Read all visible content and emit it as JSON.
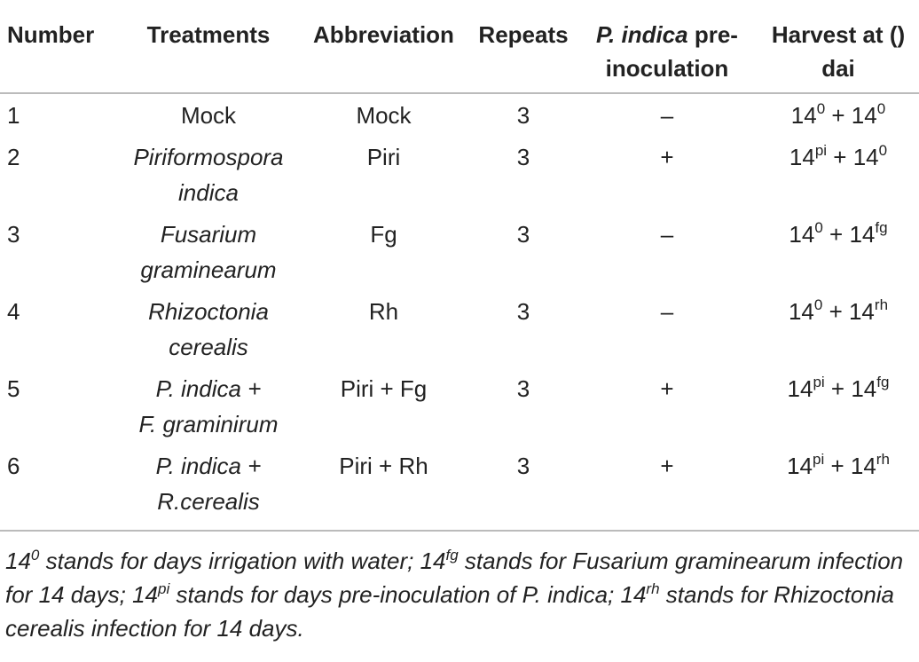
{
  "table": {
    "header": [
      "Number",
      "Treatments",
      "Abbreviation",
      "Repeats",
      {
        "italic": "P. indica",
        "text": " pre-inoculation"
      },
      "Harvest at () dai"
    ],
    "rows": [
      {
        "number": "1",
        "treatment": [
          "Mock"
        ],
        "treatment_italic": false,
        "abbreviation": "Mock",
        "repeats": 3,
        "pre_inoculation": "–",
        "harvest": [
          {
            "text": "14"
          },
          {
            "sup": "0"
          },
          {
            "text": " + 14"
          },
          {
            "sup": "0"
          }
        ]
      },
      {
        "number": "2",
        "treatment": [
          "Piriformospora",
          "indica"
        ],
        "treatment_italic": true,
        "abbreviation": "Piri",
        "repeats": 3,
        "pre_inoculation": "+",
        "harvest": [
          {
            "text": "14"
          },
          {
            "sup": "pi"
          },
          {
            "text": " + 14"
          },
          {
            "sup": "0"
          }
        ]
      },
      {
        "number": "3",
        "treatment": [
          "Fusarium",
          "graminearum"
        ],
        "treatment_italic": true,
        "abbreviation": "Fg",
        "repeats": 3,
        "pre_inoculation": "–",
        "harvest": [
          {
            "text": "14"
          },
          {
            "sup": "0"
          },
          {
            "text": " + 14"
          },
          {
            "sup": "fg"
          }
        ]
      },
      {
        "number": "4",
        "treatment": [
          "Rhizoctonia",
          "cerealis"
        ],
        "treatment_italic": true,
        "abbreviation": "Rh",
        "repeats": 3,
        "pre_inoculation": "–",
        "harvest": [
          {
            "text": "14"
          },
          {
            "sup": "0"
          },
          {
            "text": " + 14"
          },
          {
            "sup": "rh"
          }
        ]
      },
      {
        "number": "5",
        "treatment": [
          "P. indica +",
          "F. graminirum"
        ],
        "treatment_italic": true,
        "abbreviation": "Piri + Fg",
        "repeats": 3,
        "pre_inoculation": "+",
        "harvest": [
          {
            "text": "14"
          },
          {
            "sup": "pi"
          },
          {
            "text": " + 14"
          },
          {
            "sup": "fg"
          }
        ]
      },
      {
        "number": "6",
        "treatment": [
          "P. indica +",
          "R.cerealis"
        ],
        "treatment_italic": true,
        "abbreviation": "Piri + Rh",
        "repeats": 3,
        "pre_inoculation": "+",
        "harvest": [
          {
            "text": "14"
          },
          {
            "sup": "pi"
          },
          {
            "text": " + 14"
          },
          {
            "sup": "rh"
          }
        ]
      }
    ],
    "footnote": [
      {
        "text": "14"
      },
      {
        "sup": "0"
      },
      {
        "text": " stands for days irrigation with water; 14"
      },
      {
        "sup": "fg"
      },
      {
        "text": " stands for Fusarium graminearum infection for 14 days; 14"
      },
      {
        "sup": "pi"
      },
      {
        "text": " stands for days pre-inoculation of P. indica; 14"
      },
      {
        "sup": "rh"
      },
      {
        "text": " stands for Rhizoctonia cerealis infection for 14 days."
      }
    ]
  }
}
